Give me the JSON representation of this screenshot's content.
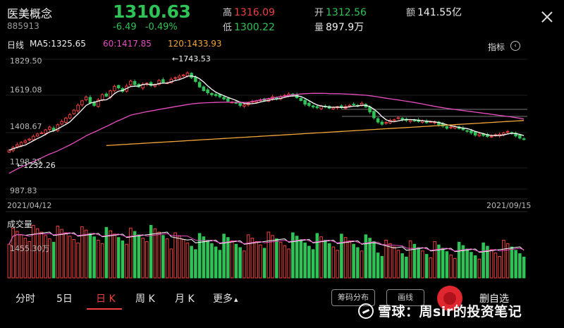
{
  "header": {
    "name": "医美概念",
    "code": "885913",
    "price": "1310.63",
    "change": "-6.49",
    "change_pct": "-0.49%",
    "high_label": "高",
    "high": "1316.09",
    "low_label": "低",
    "low": "1300.22",
    "open_label": "开",
    "open": "1312.56",
    "vol_label": "量",
    "vol": "897.9万",
    "amt_label": "额",
    "amt": "141.55亿"
  },
  "ma_row": {
    "period": "日线",
    "ma5": "MA5:1325.65",
    "ma60": "60:1417.85",
    "ma120": "120:1433.93",
    "indicator": "指标",
    "indicator_icon": "circle-arrow-icon"
  },
  "colors": {
    "up": "#ef4040",
    "down": "#2fc257",
    "ma5": "#ffffff",
    "ma60": "#e64ec0",
    "ma120": "#f2a53a"
  },
  "chart_data": {
    "type": "candlestick",
    "y_ticks": [
      "1829.50",
      "1619.08",
      "1408.67",
      "1198.25",
      "987.83"
    ],
    "ylim": [
      987.83,
      1829.5
    ],
    "date_start": "2021/04/12",
    "date_end": "2021/09/15",
    "high_marker": "←1743.53",
    "low_marker": "←1232.26",
    "volume_label": "成交量",
    "volume_tick": "1455.30万",
    "closes": [
      1240,
      1258,
      1275,
      1290,
      1300,
      1312,
      1330,
      1345,
      1352,
      1372,
      1390,
      1368,
      1405,
      1426,
      1448,
      1470,
      1500,
      1532,
      1560,
      1585,
      1548,
      1530,
      1565,
      1600,
      1590,
      1625,
      1654,
      1644,
      1621,
      1656,
      1688,
      1665,
      1650,
      1668,
      1674,
      1660,
      1667,
      1692,
      1680,
      1676,
      1700,
      1710,
      1720,
      1728,
      1740,
      1710,
      1685,
      1650,
      1626,
      1612,
      1600,
      1594,
      1586,
      1572,
      1558,
      1551,
      1544,
      1530,
      1534,
      1546,
      1556,
      1560,
      1566,
      1560,
      1571,
      1586,
      1574,
      1586,
      1596,
      1604,
      1596,
      1580,
      1562,
      1538,
      1530,
      1520,
      1515,
      1527,
      1520,
      1512,
      1515,
      1522,
      1516,
      1523,
      1531,
      1534,
      1526,
      1544,
      1520,
      1488,
      1450,
      1422,
      1408,
      1420,
      1434,
      1437,
      1450,
      1438,
      1433,
      1435,
      1432,
      1426,
      1429,
      1418,
      1424,
      1421,
      1405,
      1396,
      1382,
      1390,
      1392,
      1380,
      1372,
      1365,
      1352,
      1338,
      1345,
      1335,
      1328,
      1330,
      1340,
      1343,
      1352,
      1360,
      1350,
      1332,
      1318,
      1310
    ]
  },
  "tabs": [
    {
      "label": "分时"
    },
    {
      "label": "5日"
    },
    {
      "label": "日 K"
    },
    {
      "label": "周 K"
    },
    {
      "label": "月 K"
    },
    {
      "label": "更多"
    }
  ],
  "more_arrow": "▴",
  "buttons": {
    "chip_dist": "筹码分布",
    "draw_line": "画线",
    "delete_watch": "删自选"
  },
  "watermark": "雪球：周sir的投资笔记"
}
